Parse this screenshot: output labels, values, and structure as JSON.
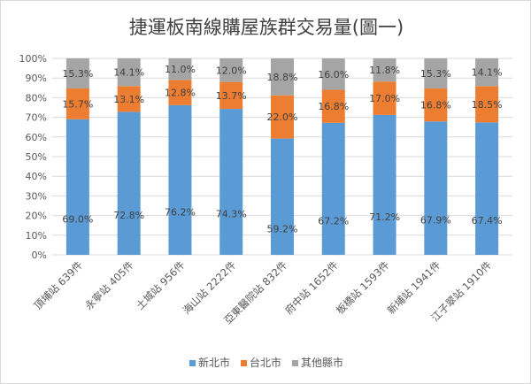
{
  "chart_data": {
    "type": "bar",
    "stacked": "percent",
    "title": "捷運板南線購屋族群交易量(圖一)",
    "categories": [
      "頂埔站 639件",
      "永寧站 405件",
      "土城站 956件",
      "海山站 2222件",
      "亞東醫院站 832件",
      "府中站 1652件",
      "板橋站 1593件",
      "新埔站 1941件",
      "江子翠站 1910件"
    ],
    "series": [
      {
        "name": "新北市",
        "color": "#5b9bd5",
        "values": [
          69.0,
          72.8,
          76.2,
          74.3,
          59.2,
          67.2,
          71.2,
          67.9,
          67.4
        ]
      },
      {
        "name": "台北市",
        "color": "#ed7d31",
        "values": [
          15.7,
          13.1,
          12.8,
          13.7,
          22.0,
          16.8,
          17.0,
          16.8,
          18.5
        ]
      },
      {
        "name": "其他縣市",
        "color": "#a5a5a5",
        "values": [
          15.3,
          14.1,
          11.0,
          12.0,
          18.8,
          16.0,
          11.8,
          15.3,
          14.1
        ]
      }
    ],
    "yticks": [
      "0%",
      "10%",
      "20%",
      "30%",
      "40%",
      "50%",
      "60%",
      "70%",
      "80%",
      "90%",
      "100%"
    ],
    "ylim": [
      0,
      100
    ],
    "grid": true,
    "legend": "bottom"
  }
}
